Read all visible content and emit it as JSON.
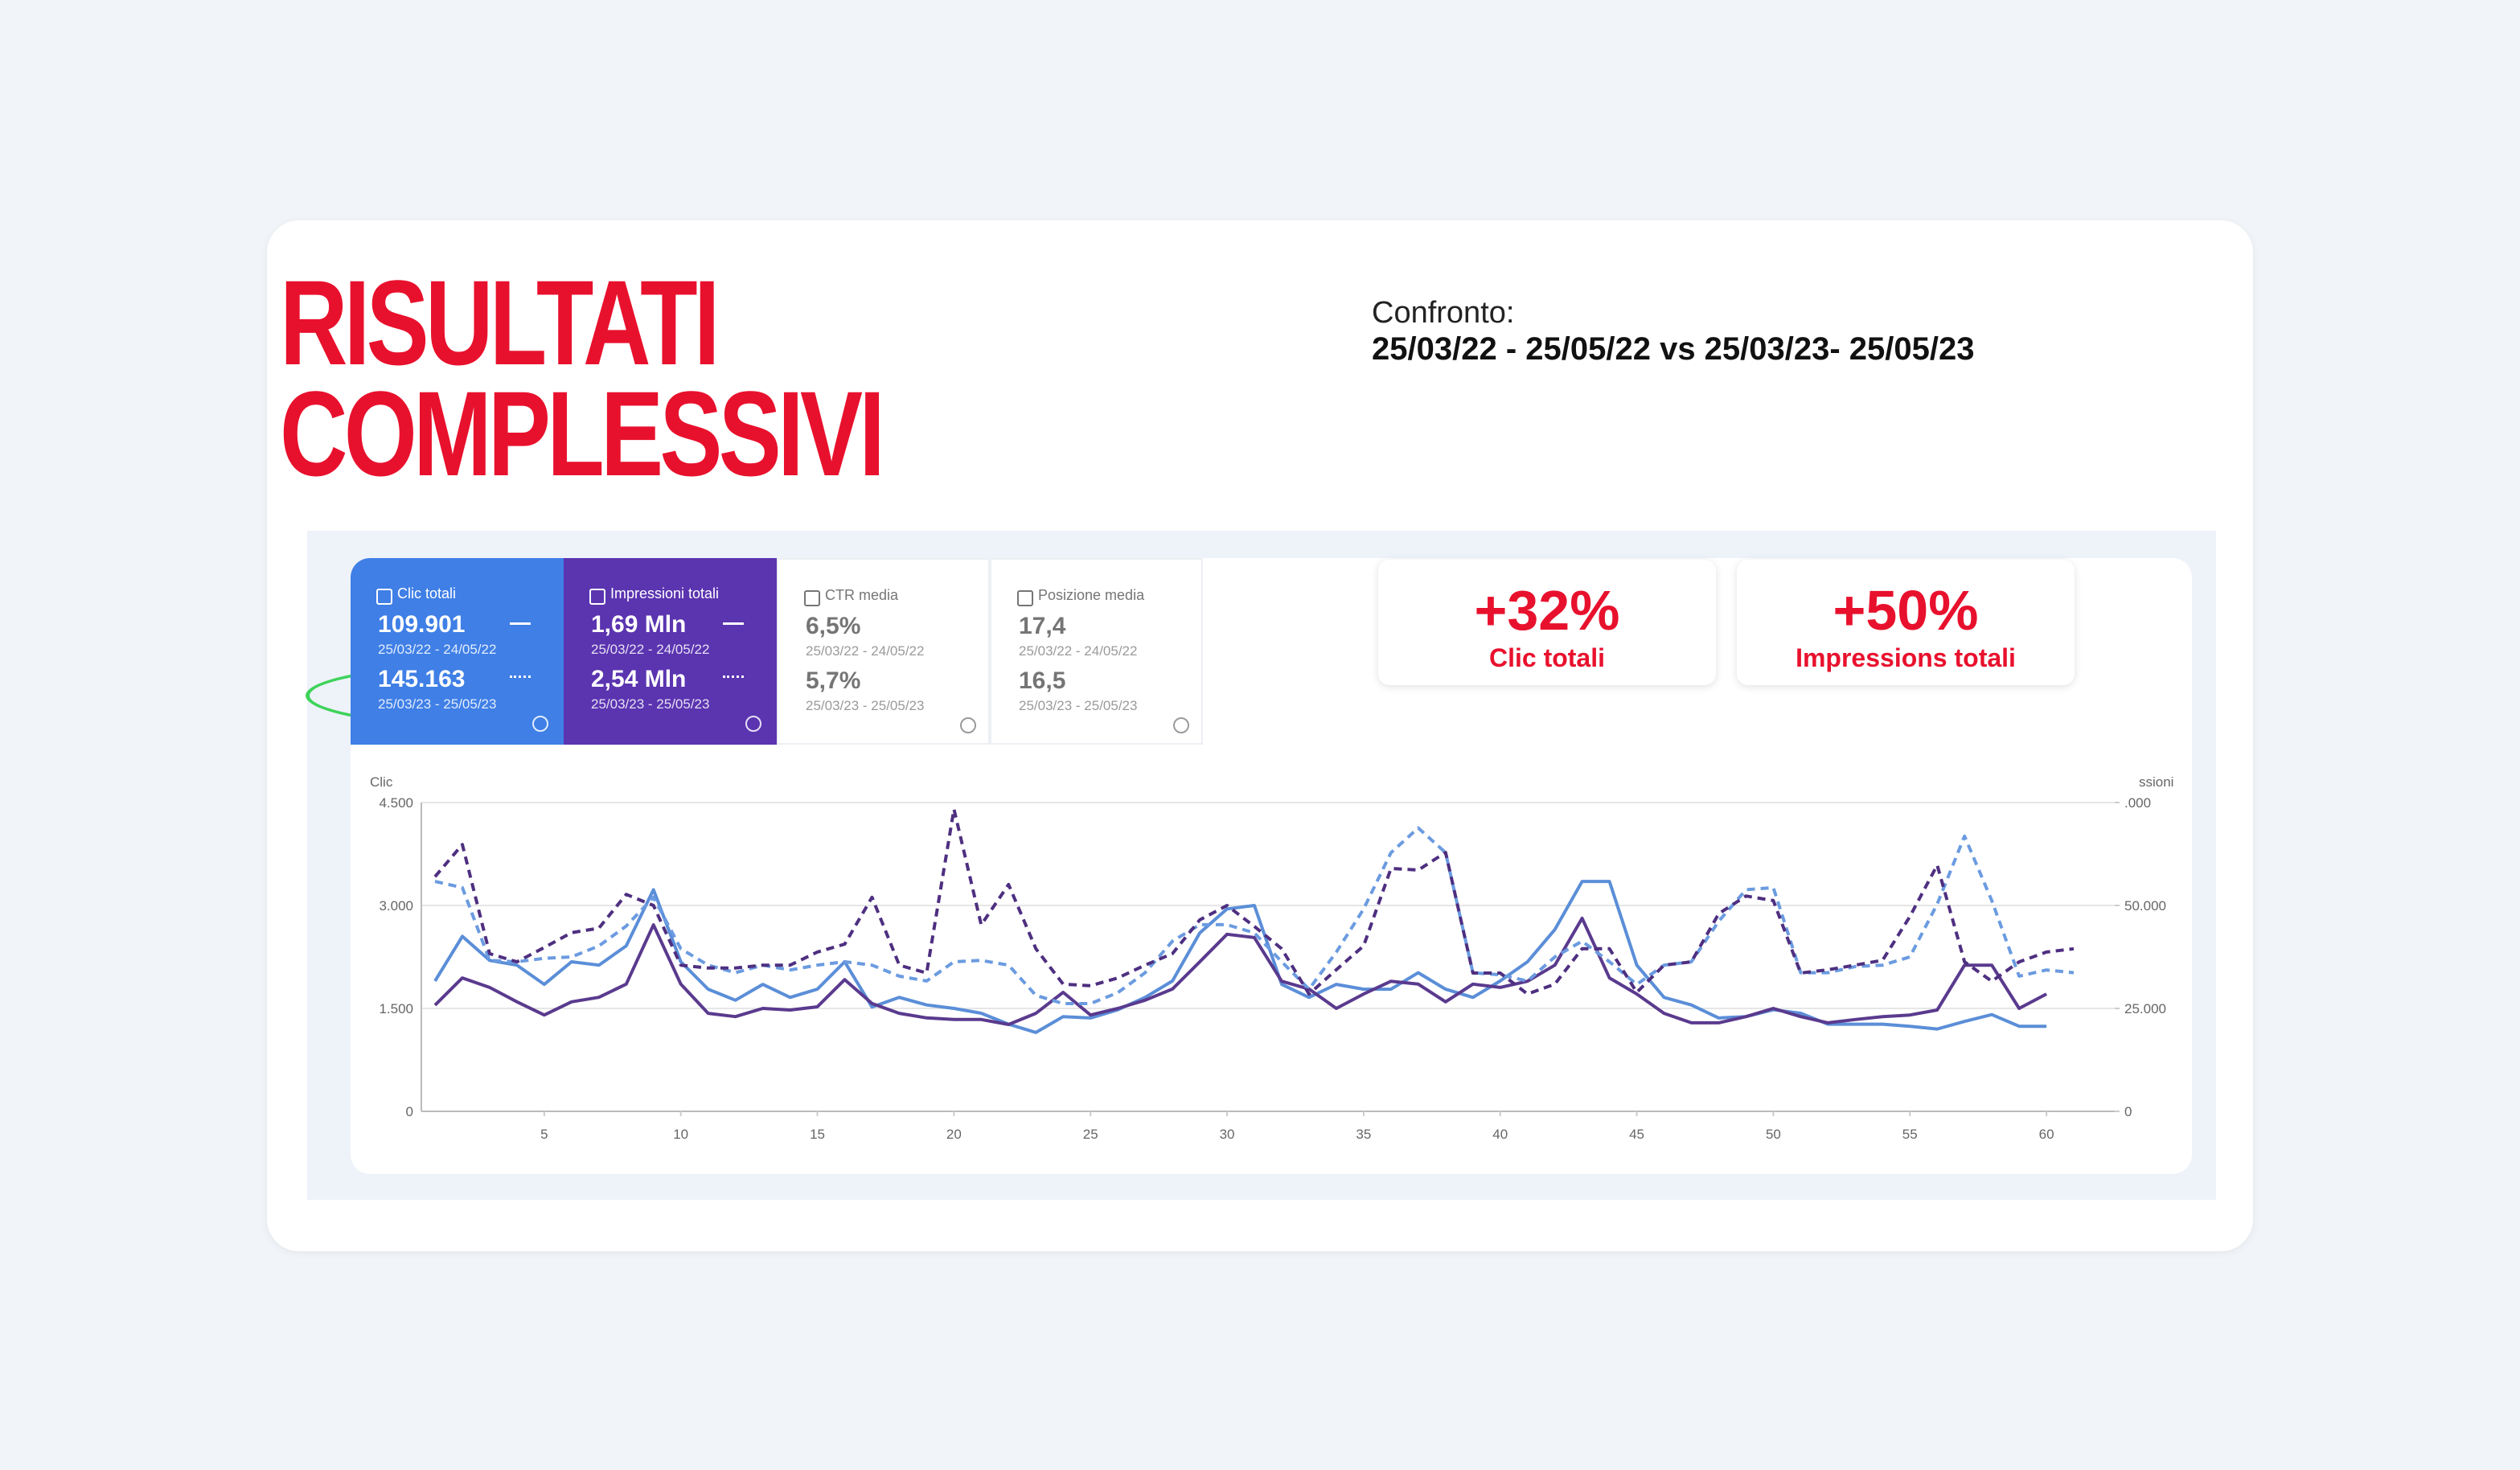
{
  "header": {
    "title_lines": [
      "RISULTATI",
      "COMPLESSIVI"
    ],
    "compare_label": "Confronto:",
    "compare_dates": "25/03/22 - 25/05/22 vs 25/03/23- 25/05/23"
  },
  "metrics": [
    {
      "label": "Clic totali",
      "checked": true,
      "color": "#3f7fe6",
      "value1": "109.901",
      "date1": "25/03/22 - 24/05/22",
      "value2": "145.163",
      "date2": "25/03/23 - 25/05/23"
    },
    {
      "label": "Impressioni totali",
      "checked": true,
      "color": "#5b34b0",
      "value1": "1,69 Mln",
      "date1": "25/03/22 - 24/05/22",
      "value2": "2,54 Mln",
      "date2": "25/03/23 - 25/05/23"
    },
    {
      "label": "CTR media",
      "checked": false,
      "color": "#ffffff",
      "value1": "6,5%",
      "date1": "25/03/22 - 24/05/22",
      "value2": "5,7%",
      "date2": "25/03/23 - 25/05/23"
    },
    {
      "label": "Posizione media",
      "checked": false,
      "color": "#ffffff",
      "value1": "17,4",
      "date1": "25/03/22 - 24/05/22",
      "value2": "16,5",
      "date2": "25/03/23 - 25/05/23"
    }
  ],
  "kpis": [
    {
      "value": "+32%",
      "label": "Clic totali"
    },
    {
      "value": "+50%",
      "label": "Impressions totali"
    }
  ],
  "chart_data": {
    "type": "line",
    "y_label": "Clic",
    "y2_label": "ssioni",
    "grid": true,
    "x": [
      1,
      2,
      3,
      4,
      5,
      6,
      7,
      8,
      9,
      10,
      11,
      12,
      13,
      14,
      15,
      16,
      17,
      18,
      19,
      20,
      21,
      22,
      23,
      24,
      25,
      26,
      27,
      28,
      29,
      30,
      31,
      32,
      33,
      34,
      35,
      36,
      37,
      38,
      39,
      40,
      41,
      42,
      43,
      44,
      45,
      46,
      47,
      48,
      49,
      50,
      51,
      52,
      53,
      54,
      55,
      56,
      57,
      58,
      59,
      60,
      61
    ],
    "xlim": [
      0.5,
      62.5
    ],
    "xticks": [
      5,
      10,
      15,
      20,
      25,
      30,
      35,
      40,
      45,
      50,
      55,
      60
    ],
    "ylim": [
      0,
      4500
    ],
    "yticks": [
      0,
      {
        "value": 1500,
        "label": "1.500"
      },
      {
        "value": 3000,
        "label": "3.000"
      },
      {
        "value": 4500,
        "label": "4.500"
      }
    ],
    "y2lim": [
      0,
      75000
    ],
    "y2ticks": [
      0,
      {
        "value": 25000,
        "label": "25.000"
      },
      {
        "value": 50000,
        "label": "50.000"
      },
      {
        "value": 75000,
        "label": ".000"
      }
    ],
    "series": [
      {
        "color": "#5b8ed8",
        "style": "solid",
        "axis": "y",
        "values": [
          1900,
          2550,
          2200,
          2130,
          1850,
          2180,
          2130,
          2410,
          3230,
          2180,
          1780,
          1620,
          1850,
          1660,
          1780,
          2180,
          1520,
          1660,
          1550,
          1500,
          1430,
          1270,
          1150,
          1380,
          1360,
          1480,
          1660,
          1900,
          2600,
          2950,
          3000,
          1850,
          1660,
          1850,
          1780,
          1780,
          2020,
          1780,
          1660,
          1900,
          2180,
          2650,
          3350,
          3350,
          2130,
          1660,
          1550,
          1360,
          1380,
          1480,
          1430,
          1270,
          1270,
          1270,
          1240,
          1200,
          1310,
          1410,
          1240,
          1240,
          null
        ]
      },
      {
        "color": "#5a3a8e",
        "style": "solid",
        "axis": "y2",
        "values": [
          25800,
          32400,
          30100,
          26600,
          23400,
          26600,
          27700,
          30900,
          45300,
          30900,
          23800,
          23000,
          25000,
          24600,
          25400,
          32000,
          26200,
          23800,
          22700,
          22300,
          22300,
          21100,
          23800,
          28900,
          23400,
          25000,
          27000,
          29700,
          36300,
          43000,
          42200,
          31600,
          29700,
          25000,
          28500,
          31600,
          30900,
          26600,
          30900,
          30100,
          31600,
          35500,
          46900,
          32400,
          28500,
          23800,
          21500,
          21500,
          23000,
          25000,
          23000,
          21500,
          22300,
          23000,
          23400,
          24600,
          35500,
          35500,
          25000,
          28500,
          null
        ]
      },
      {
        "color": "#6b9be0",
        "style": "dashed",
        "axis": "y",
        "values": [
          3350,
          3260,
          2200,
          2180,
          2230,
          2250,
          2410,
          2700,
          3120,
          2370,
          2130,
          2020,
          2130,
          2060,
          2130,
          2180,
          2130,
          1970,
          1900,
          2180,
          2200,
          2130,
          1690,
          1570,
          1570,
          1730,
          2020,
          2480,
          2720,
          2720,
          2600,
          2180,
          1780,
          2320,
          2950,
          3770,
          4130,
          3770,
          2020,
          1990,
          1900,
          2250,
          2480,
          2180,
          1850,
          2130,
          2180,
          2770,
          3230,
          3260,
          2020,
          2020,
          2110,
          2130,
          2250,
          3020,
          4010,
          3070,
          1970,
          2060,
          2020
        ]
      },
      {
        "color": "#4e2f80",
        "style": "dashed",
        "axis": "y2",
        "values": [
          57000,
          64800,
          38300,
          36300,
          39800,
          43400,
          44500,
          52700,
          50000,
          35500,
          34800,
          34800,
          35500,
          35500,
          38700,
          40600,
          52000,
          35500,
          33600,
          73400,
          45300,
          55100,
          39500,
          30900,
          30500,
          32400,
          35500,
          38300,
          46500,
          50000,
          44900,
          39500,
          28500,
          34400,
          40200,
          59000,
          58600,
          62900,
          33600,
          33600,
          28500,
          30900,
          39500,
          39500,
          28900,
          35500,
          36300,
          48000,
          52300,
          51200,
          33600,
          34400,
          35500,
          36700,
          47300,
          59800,
          36300,
          31600,
          36300,
          38700,
          39500
        ]
      }
    ]
  }
}
